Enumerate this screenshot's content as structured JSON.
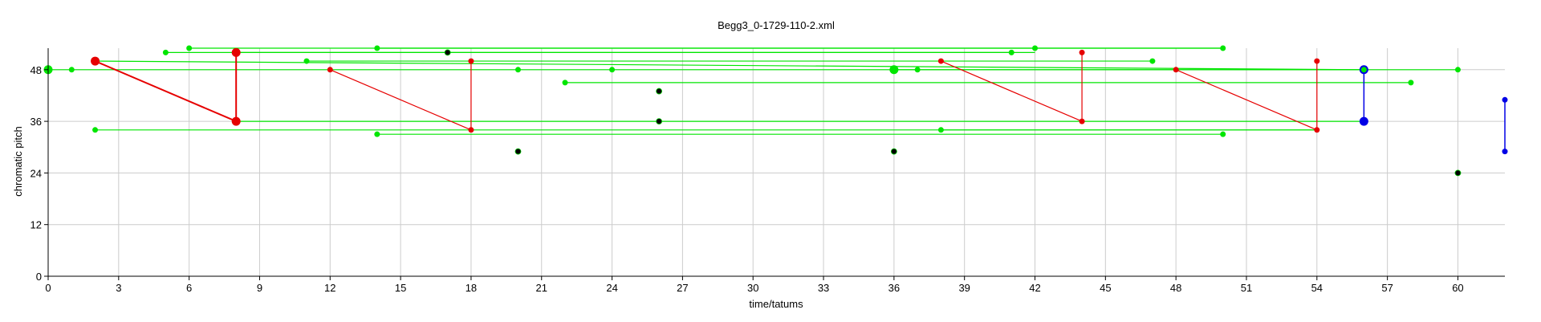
{
  "chart_data": {
    "type": "scatter",
    "title": "Begg3_0-1729-110-2.xml",
    "xlabel": "time/tatums",
    "ylabel": "chromatic pitch",
    "xlim": [
      0,
      62
    ],
    "ylim": [
      0,
      53
    ],
    "x_ticks": [
      "0",
      "3",
      "6",
      "9",
      "12",
      "15",
      "18",
      "21",
      "24",
      "27",
      "30",
      "33",
      "36",
      "39",
      "42",
      "45",
      "48",
      "51",
      "54",
      "57",
      "60"
    ],
    "y_ticks": [
      "0",
      "12",
      "24",
      "36",
      "48"
    ],
    "grid": true,
    "colors": {
      "green": "#00e600",
      "red": "#e60000",
      "blue": "#0000e6",
      "black": "#000000"
    },
    "green_segments": [
      [
        0,
        48,
        60,
        48
      ],
      [
        2,
        50,
        56,
        48
      ],
      [
        5,
        52,
        42,
        52
      ],
      [
        6,
        53,
        50,
        53
      ],
      [
        8,
        52,
        41,
        52
      ],
      [
        11,
        50,
        47,
        50
      ],
      [
        14,
        53,
        50,
        53
      ],
      [
        22,
        45,
        58,
        45
      ],
      [
        2,
        34,
        54,
        34
      ],
      [
        8,
        36,
        56,
        36
      ],
      [
        14,
        33,
        50,
        33
      ],
      [
        38,
        34,
        54,
        34
      ],
      [
        36,
        48,
        56,
        48
      ]
    ],
    "red_segments": [
      [
        2,
        50,
        8,
        36
      ],
      [
        8,
        52,
        8,
        36
      ],
      [
        12,
        48,
        18,
        34
      ],
      [
        18,
        50,
        18,
        34
      ],
      [
        38,
        50,
        44,
        36
      ],
      [
        44,
        52,
        44,
        36
      ],
      [
        48,
        48,
        54,
        34
      ],
      [
        54,
        50,
        54,
        34
      ]
    ],
    "blue_segments": [
      [
        56,
        48,
        56,
        36
      ],
      [
        62,
        41,
        62,
        29
      ]
    ],
    "points": [
      {
        "x": 0,
        "y": 48,
        "c": "green",
        "s": "large"
      },
      {
        "x": 1,
        "y": 48,
        "c": "green",
        "s": "small"
      },
      {
        "x": 2,
        "y": 50,
        "c": "red",
        "s": "large"
      },
      {
        "x": 2,
        "y": 34,
        "c": "green",
        "s": "small"
      },
      {
        "x": 5,
        "y": 52,
        "c": "green",
        "s": "small"
      },
      {
        "x": 6,
        "y": 53,
        "c": "green",
        "s": "small"
      },
      {
        "x": 8,
        "y": 52,
        "c": "red",
        "s": "large"
      },
      {
        "x": 8,
        "y": 36,
        "c": "red",
        "s": "large"
      },
      {
        "x": 11,
        "y": 50,
        "c": "green",
        "s": "small"
      },
      {
        "x": 12,
        "y": 48,
        "c": "red",
        "s": "small"
      },
      {
        "x": 14,
        "y": 53,
        "c": "green",
        "s": "small"
      },
      {
        "x": 14,
        "y": 33,
        "c": "green",
        "s": "small"
      },
      {
        "x": 17,
        "y": 52,
        "c": "black",
        "s": "small"
      },
      {
        "x": 18,
        "y": 50,
        "c": "red",
        "s": "small"
      },
      {
        "x": 18,
        "y": 34,
        "c": "red",
        "s": "small"
      },
      {
        "x": 20,
        "y": 48,
        "c": "green",
        "s": "small"
      },
      {
        "x": 20,
        "y": 29,
        "c": "black",
        "s": "small"
      },
      {
        "x": 22,
        "y": 45,
        "c": "green",
        "s": "small"
      },
      {
        "x": 24,
        "y": 48,
        "c": "green",
        "s": "small"
      },
      {
        "x": 26,
        "y": 43,
        "c": "black",
        "s": "small"
      },
      {
        "x": 26,
        "y": 36,
        "c": "black",
        "s": "small"
      },
      {
        "x": 36,
        "y": 48,
        "c": "green",
        "s": "large"
      },
      {
        "x": 36,
        "y": 29,
        "c": "black",
        "s": "small"
      },
      {
        "x": 37,
        "y": 48,
        "c": "green",
        "s": "small"
      },
      {
        "x": 38,
        "y": 50,
        "c": "red",
        "s": "small"
      },
      {
        "x": 38,
        "y": 34,
        "c": "green",
        "s": "small"
      },
      {
        "x": 41,
        "y": 52,
        "c": "green",
        "s": "small"
      },
      {
        "x": 42,
        "y": 53,
        "c": "green",
        "s": "small"
      },
      {
        "x": 44,
        "y": 52,
        "c": "red",
        "s": "small"
      },
      {
        "x": 44,
        "y": 36,
        "c": "red",
        "s": "small"
      },
      {
        "x": 47,
        "y": 50,
        "c": "green",
        "s": "small"
      },
      {
        "x": 48,
        "y": 48,
        "c": "red",
        "s": "small"
      },
      {
        "x": 50,
        "y": 53,
        "c": "green",
        "s": "small"
      },
      {
        "x": 50,
        "y": 33,
        "c": "green",
        "s": "small"
      },
      {
        "x": 54,
        "y": 50,
        "c": "red",
        "s": "small"
      },
      {
        "x": 54,
        "y": 34,
        "c": "red",
        "s": "small"
      },
      {
        "x": 56,
        "y": 48,
        "c": "blue",
        "s": "large"
      },
      {
        "x": 56,
        "y": 48,
        "c": "green",
        "s": "small"
      },
      {
        "x": 56,
        "y": 36,
        "c": "blue",
        "s": "large"
      },
      {
        "x": 58,
        "y": 45,
        "c": "green",
        "s": "small"
      },
      {
        "x": 60,
        "y": 48,
        "c": "green",
        "s": "small"
      },
      {
        "x": 60,
        "y": 24,
        "c": "black",
        "s": "small"
      },
      {
        "x": 62,
        "y": 41,
        "c": "blue",
        "s": "small"
      },
      {
        "x": 62,
        "y": 29,
        "c": "blue",
        "s": "small"
      }
    ]
  }
}
